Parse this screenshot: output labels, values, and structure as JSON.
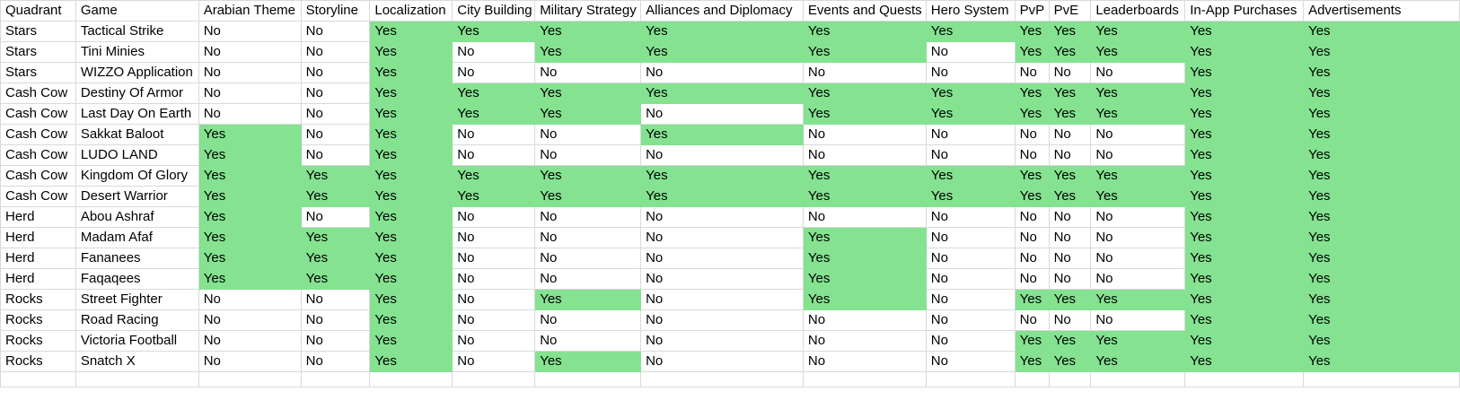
{
  "sheet": {
    "highlight_color": "#84e291",
    "highlight_rule": "Yes",
    "headers": [
      "Quadrant",
      "Game",
      "Arabian Theme",
      "Storyline",
      "Localization",
      "City Building",
      "Military Strategy",
      "Alliances and Diplomacy",
      "Events and Quests",
      "Hero System",
      "PvP",
      "PvE",
      "Leaderboards",
      "In-App Purchases",
      "Advertisements"
    ],
    "rows": [
      [
        "Stars",
        "Tactical Strike",
        "No",
        "No",
        "Yes",
        "Yes",
        "Yes",
        "Yes",
        "Yes",
        "Yes",
        "Yes",
        "Yes",
        "Yes",
        "Yes",
        "Yes"
      ],
      [
        "Stars",
        "Tini Minies",
        "No",
        "No",
        "Yes",
        "No",
        "Yes",
        "Yes",
        "Yes",
        "No",
        "Yes",
        "Yes",
        "Yes",
        "Yes",
        "Yes"
      ],
      [
        "Stars",
        "WIZZO Application",
        "No",
        "No",
        "Yes",
        "No",
        "No",
        "No",
        "No",
        "No",
        "No",
        "No",
        "No",
        "Yes",
        "Yes"
      ],
      [
        "Cash Cow",
        "Destiny Of Armor",
        "No",
        "No",
        "Yes",
        "Yes",
        "Yes",
        "Yes",
        "Yes",
        "Yes",
        "Yes",
        "Yes",
        "Yes",
        "Yes",
        "Yes"
      ],
      [
        "Cash Cow",
        "Last Day On Earth",
        "No",
        "No",
        "Yes",
        "Yes",
        "Yes",
        "No",
        "Yes",
        "Yes",
        "Yes",
        "Yes",
        "Yes",
        "Yes",
        "Yes"
      ],
      [
        "Cash Cow",
        "Sakkat Baloot",
        "Yes",
        "No",
        "Yes",
        "No",
        "No",
        "Yes",
        "No",
        "No",
        "No",
        "No",
        "No",
        "Yes",
        "Yes"
      ],
      [
        "Cash Cow",
        "LUDO LAND",
        "Yes",
        "No",
        "Yes",
        "No",
        "No",
        "No",
        "No",
        "No",
        "No",
        "No",
        "No",
        "Yes",
        "Yes"
      ],
      [
        "Cash Cow",
        "Kingdom Of Glory",
        "Yes",
        "Yes",
        "Yes",
        "Yes",
        "Yes",
        "Yes",
        "Yes",
        "Yes",
        "Yes",
        "Yes",
        "Yes",
        "Yes",
        "Yes"
      ],
      [
        "Cash Cow",
        "Desert Warrior",
        "Yes",
        "Yes",
        "Yes",
        "Yes",
        "Yes",
        "Yes",
        "Yes",
        "Yes",
        "Yes",
        "Yes",
        "Yes",
        "Yes",
        "Yes"
      ],
      [
        "Herd",
        "Abou Ashraf",
        "Yes",
        "No",
        "Yes",
        "No",
        "No",
        "No",
        "No",
        "No",
        "No",
        "No",
        "No",
        "Yes",
        "Yes"
      ],
      [
        "Herd",
        "Madam Afaf",
        "Yes",
        "Yes",
        "Yes",
        "No",
        "No",
        "No",
        "Yes",
        "No",
        "No",
        "No",
        "No",
        "Yes",
        "Yes"
      ],
      [
        "Herd",
        "Fananees",
        "Yes",
        "Yes",
        "Yes",
        "No",
        "No",
        "No",
        "Yes",
        "No",
        "No",
        "No",
        "No",
        "Yes",
        "Yes"
      ],
      [
        "Herd",
        "Faqaqees",
        "Yes",
        "Yes",
        "Yes",
        "No",
        "No",
        "No",
        "Yes",
        "No",
        "No",
        "No",
        "No",
        "Yes",
        "Yes"
      ],
      [
        "Rocks",
        "Street Fighter",
        "No",
        "No",
        "Yes",
        "No",
        "Yes",
        "No",
        "Yes",
        "No",
        "Yes",
        "Yes",
        "Yes",
        "Yes",
        "Yes"
      ],
      [
        "Rocks",
        "Road Racing",
        "No",
        "No",
        "Yes",
        "No",
        "No",
        "No",
        "No",
        "No",
        "No",
        "No",
        "No",
        "Yes",
        "Yes"
      ],
      [
        "Rocks",
        "Victoria Football",
        "No",
        "No",
        "Yes",
        "No",
        "No",
        "No",
        "No",
        "No",
        "Yes",
        "Yes",
        "Yes",
        "Yes",
        "Yes"
      ],
      [
        "Rocks",
        "Snatch X",
        "No",
        "No",
        "Yes",
        "No",
        "Yes",
        "No",
        "No",
        "No",
        "Yes",
        "Yes",
        "Yes",
        "Yes",
        "Yes"
      ]
    ]
  }
}
